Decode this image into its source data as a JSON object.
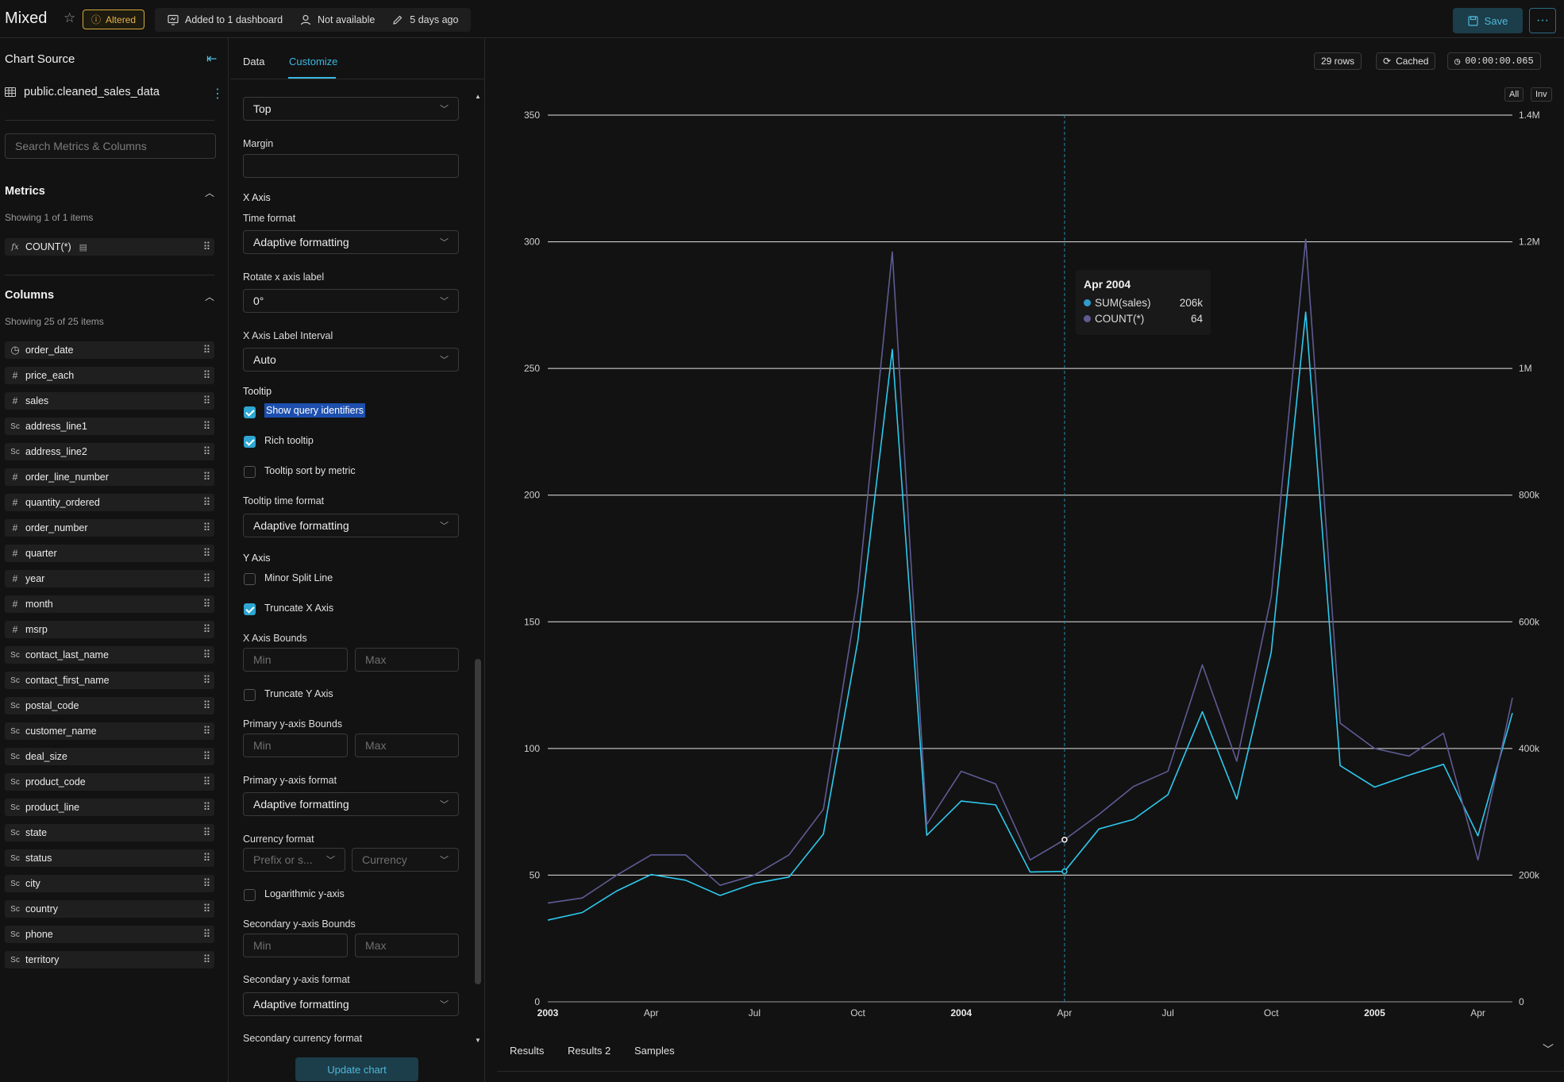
{
  "header": {
    "title": "Mixed",
    "altered": "Altered",
    "dashboard": "Added to 1 dashboard",
    "owner": "Not available",
    "modified": "5 days ago",
    "save": "Save",
    "more": "···"
  },
  "source": {
    "title": "Chart Source",
    "dataset": "public.cleaned_sales_data",
    "search_placeholder": "Search Metrics & Columns",
    "metrics_title": "Metrics",
    "metrics_count": "Showing 1 of 1 items",
    "metric": "COUNT(*)",
    "columns_title": "Columns",
    "columns_count": "Showing 25 of 25 items",
    "columns": [
      {
        "name": "order_date",
        "type": "time"
      },
      {
        "name": "price_each",
        "type": "num"
      },
      {
        "name": "sales",
        "type": "num"
      },
      {
        "name": "address_line1",
        "type": "str"
      },
      {
        "name": "address_line2",
        "type": "str"
      },
      {
        "name": "order_line_number",
        "type": "num"
      },
      {
        "name": "quantity_ordered",
        "type": "num"
      },
      {
        "name": "order_number",
        "type": "num"
      },
      {
        "name": "quarter",
        "type": "num"
      },
      {
        "name": "year",
        "type": "num"
      },
      {
        "name": "month",
        "type": "num"
      },
      {
        "name": "msrp",
        "type": "num"
      },
      {
        "name": "contact_last_name",
        "type": "str"
      },
      {
        "name": "contact_first_name",
        "type": "str"
      },
      {
        "name": "postal_code",
        "type": "str"
      },
      {
        "name": "customer_name",
        "type": "str"
      },
      {
        "name": "deal_size",
        "type": "str"
      },
      {
        "name": "product_code",
        "type": "str"
      },
      {
        "name": "product_line",
        "type": "str"
      },
      {
        "name": "state",
        "type": "str"
      },
      {
        "name": "status",
        "type": "str"
      },
      {
        "name": "city",
        "type": "str"
      },
      {
        "name": "country",
        "type": "str"
      },
      {
        "name": "phone",
        "type": "str"
      },
      {
        "name": "territory",
        "type": "str"
      }
    ]
  },
  "customize": {
    "tab_data": "Data",
    "tab_customize": "Customize",
    "legend_position": "Top",
    "margin_label": "Margin",
    "x_axis_heading": "X Axis",
    "time_format_label": "Time format",
    "time_format": "Adaptive formatting",
    "rotate_label": "Rotate x axis label",
    "rotate_value": "0°",
    "interval_label": "X Axis Label Interval",
    "interval_value": "Auto",
    "tooltip_heading": "Tooltip",
    "show_query_ids": "Show query identifiers",
    "rich_tooltip": "Rich tooltip",
    "tooltip_sort": "Tooltip sort by metric",
    "tooltip_time_label": "Tooltip time format",
    "tooltip_time": "Adaptive formatting",
    "y_axis_heading": "Y Axis",
    "minor_split": "Minor Split Line",
    "truncate_x": "Truncate X Axis",
    "x_bounds_label": "X Axis Bounds",
    "min_placeholder": "Min",
    "max_placeholder": "Max",
    "truncate_y": "Truncate Y Axis",
    "primary_bounds_label": "Primary y-axis Bounds",
    "primary_format_label": "Primary y-axis format",
    "primary_format": "Adaptive formatting",
    "currency_label": "Currency format",
    "currency_prefix": "Prefix or s...",
    "currency": "Currency",
    "log_axis": "Logarithmic y-axis",
    "secondary_bounds_label": "Secondary y-axis Bounds",
    "secondary_format_label": "Secondary y-axis format",
    "secondary_format": "Adaptive formatting",
    "secondary_currency_label": "Secondary currency format",
    "update": "Update chart"
  },
  "status": {
    "rows": "29 rows",
    "cached": "Cached",
    "time": "00:00:00.065",
    "all": "All",
    "inv": "Inv"
  },
  "tooltip": {
    "title": "Apr 2004",
    "s1_label": "SUM(sales)",
    "s1_value": "206k",
    "s2_label": "COUNT(*)",
    "s2_value": "64"
  },
  "bottom_tabs": [
    "Results",
    "Results 2",
    "Samples"
  ],
  "colors": {
    "sales": "#2ec9ee",
    "count": "#5e5b94",
    "accent": "#3cb7e0"
  },
  "chart_data": {
    "type": "line",
    "x": [
      "2003-01",
      "2003-02",
      "2003-03",
      "2003-04",
      "2003-05",
      "2003-06",
      "2003-07",
      "2003-08",
      "2003-09",
      "2003-10",
      "2003-11",
      "2003-12",
      "2004-01",
      "2004-02",
      "2004-03",
      "2004-04",
      "2004-05",
      "2004-06",
      "2004-07",
      "2004-08",
      "2004-09",
      "2004-10",
      "2004-11",
      "2004-12",
      "2005-01",
      "2005-02",
      "2005-03",
      "2005-04",
      "2005-05"
    ],
    "x_tick_labels": [
      "2003",
      "Apr",
      "Jul",
      "Oct",
      "2004",
      "Apr",
      "Jul",
      "Oct",
      "2005",
      "Apr"
    ],
    "y_left_ticks": [
      "0",
      "50",
      "100",
      "150",
      "200",
      "250",
      "300",
      "350"
    ],
    "y_right_ticks": [
      "0",
      "200k",
      "400k",
      "600k",
      "800k",
      "1M",
      "1.2M",
      "1.4M"
    ],
    "ylim_left": [
      0,
      350
    ],
    "ylim_right": [
      0,
      1400000
    ],
    "grid": true,
    "series": [
      {
        "name": "SUM(sales)",
        "axis": "right",
        "values": [
          129000,
          141000,
          175000,
          201000,
          192000,
          168000,
          187000,
          197000,
          265000,
          570000,
          1030000,
          263000,
          317000,
          311000,
          205000,
          206000,
          273000,
          288000,
          327000,
          458000,
          320000,
          552000,
          1089000,
          373000,
          339000,
          358000,
          375000,
          262000,
          456000
        ]
      },
      {
        "name": "COUNT(*)",
        "axis": "left",
        "values": [
          39,
          41,
          50,
          58,
          58,
          46,
          50,
          58,
          76,
          161,
          296,
          70,
          91,
          86,
          56,
          64,
          74,
          85,
          91,
          133,
          95,
          160,
          301,
          110,
          100,
          97,
          106,
          56,
          120
        ]
      }
    ]
  }
}
